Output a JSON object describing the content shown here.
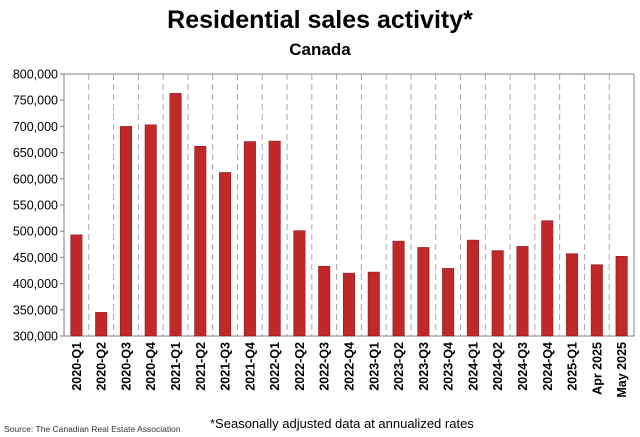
{
  "chart_data": {
    "type": "bar",
    "title": "Residential sales activity*",
    "subtitle": "Canada",
    "categories": [
      "2020-Q1",
      "2020-Q2",
      "2020-Q3",
      "2020-Q4",
      "2021-Q1",
      "2021-Q2",
      "2021-Q3",
      "2021-Q4",
      "2022-Q1",
      "2022-Q2",
      "2022-Q3",
      "2022-Q4",
      "2023-Q1",
      "2023-Q2",
      "2023-Q3",
      "2023-Q4",
      "2024-Q1",
      "2024-Q2",
      "2024-Q3",
      "2024-Q4",
      "2025-Q1",
      "Apr 2025",
      "May 2025"
    ],
    "values": [
      493000,
      345000,
      700000,
      703000,
      763000,
      662000,
      612000,
      671000,
      672000,
      501000,
      433000,
      420000,
      422000,
      481000,
      469000,
      429000,
      483000,
      463000,
      471000,
      520000,
      457000,
      436000,
      452000
    ],
    "ylim": [
      300000,
      800000
    ],
    "yticks": [
      "300,000",
      "350,000",
      "400,000",
      "450,000",
      "500,000",
      "550,000",
      "600,000",
      "650,000",
      "700,000",
      "750,000",
      "800,000"
    ],
    "grid": "vertical dashed",
    "bar_color": "#c0282a",
    "footnote": "*Seasonally adjusted data at annualized rates",
    "source": "Source: The Canadian Real Estate Association"
  }
}
